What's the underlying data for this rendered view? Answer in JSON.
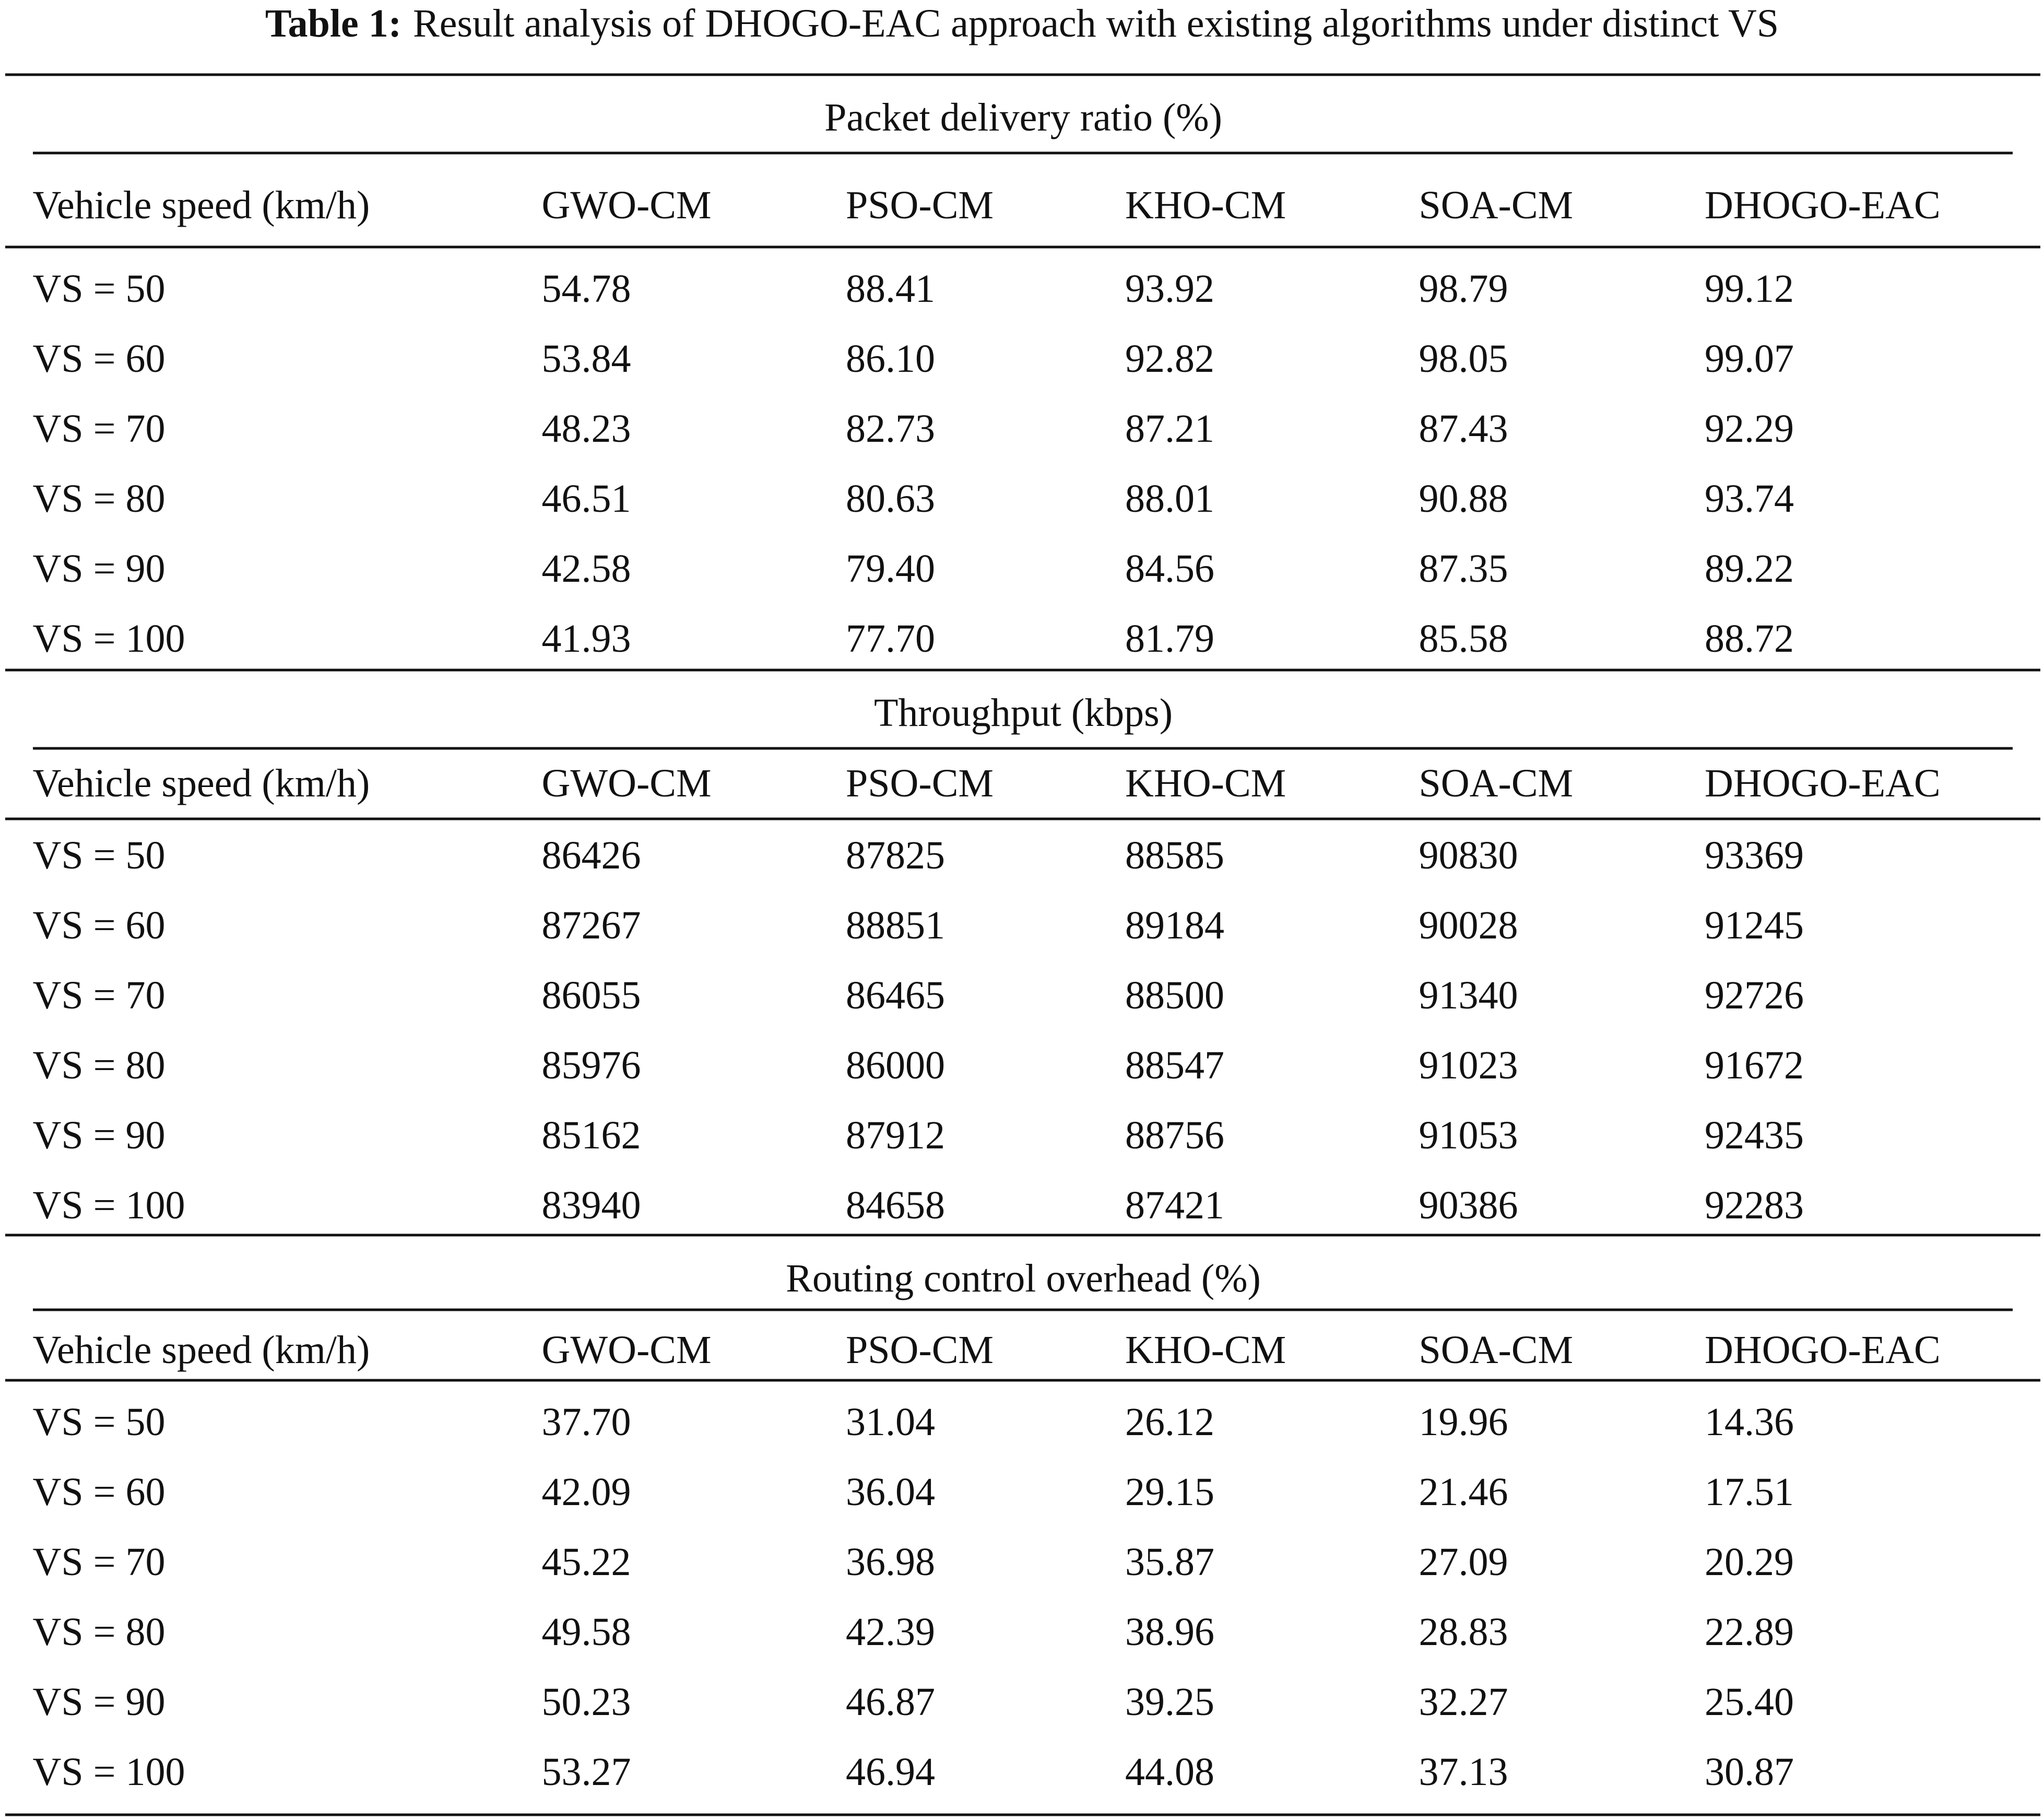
{
  "caption": {
    "label": "Table 1:",
    "text": "Result analysis of DHOGO-EAC approach with existing algorithms under distinct VS"
  },
  "sections": [
    {
      "title": "Packet delivery ratio (%)",
      "header": [
        "Vehicle speed (km/h)",
        "GWO-CM",
        "PSO-CM",
        "KHO-CM",
        "SOA-CM",
        "DHOGO-EAC"
      ],
      "rows": [
        [
          "VS = 50",
          "54.78",
          "88.41",
          "93.92",
          "98.79",
          "99.12"
        ],
        [
          "VS = 60",
          "53.84",
          "86.10",
          "92.82",
          "98.05",
          "99.07"
        ],
        [
          "VS = 70",
          "48.23",
          "82.73",
          "87.21",
          "87.43",
          "92.29"
        ],
        [
          "VS = 80",
          "46.51",
          "80.63",
          "88.01",
          "90.88",
          "93.74"
        ],
        [
          "VS = 90",
          "42.58",
          "79.40",
          "84.56",
          "87.35",
          "89.22"
        ],
        [
          "VS = 100",
          "41.93",
          "77.70",
          "81.79",
          "85.58",
          "88.72"
        ]
      ]
    },
    {
      "title": "Throughput (kbps)",
      "header": [
        "Vehicle speed (km/h)",
        "GWO-CM",
        "PSO-CM",
        "KHO-CM",
        "SOA-CM",
        "DHOGO-EAC"
      ],
      "rows": [
        [
          "VS = 50",
          "86426",
          "87825",
          "88585",
          "90830",
          "93369"
        ],
        [
          "VS = 60",
          "87267",
          "88851",
          "89184",
          "90028",
          "91245"
        ],
        [
          "VS = 70",
          "86055",
          "86465",
          "88500",
          "91340",
          "92726"
        ],
        [
          "VS = 80",
          "85976",
          "86000",
          "88547",
          "91023",
          "91672"
        ],
        [
          "VS = 90",
          "85162",
          "87912",
          "88756",
          "91053",
          "92435"
        ],
        [
          "VS = 100",
          "83940",
          "84658",
          "87421",
          "90386",
          "92283"
        ]
      ]
    },
    {
      "title": "Routing control overhead (%)",
      "header": [
        "Vehicle speed (km/h)",
        "GWO-CM",
        "PSO-CM",
        "KHO-CM",
        "SOA-CM",
        "DHOGO-EAC"
      ],
      "rows": [
        [
          "VS = 50",
          "37.70",
          "31.04",
          "26.12",
          "19.96",
          "14.36"
        ],
        [
          "VS = 60",
          "42.09",
          "36.04",
          "29.15",
          "21.46",
          "17.51"
        ],
        [
          "VS = 70",
          "45.22",
          "36.98",
          "35.87",
          "27.09",
          "20.29"
        ],
        [
          "VS = 80",
          "49.58",
          "42.39",
          "38.96",
          "28.83",
          "22.89"
        ],
        [
          "VS = 90",
          "50.23",
          "46.87",
          "39.25",
          "32.27",
          "25.40"
        ],
        [
          "VS = 100",
          "53.27",
          "46.94",
          "44.08",
          "37.13",
          "30.87"
        ]
      ]
    }
  ]
}
